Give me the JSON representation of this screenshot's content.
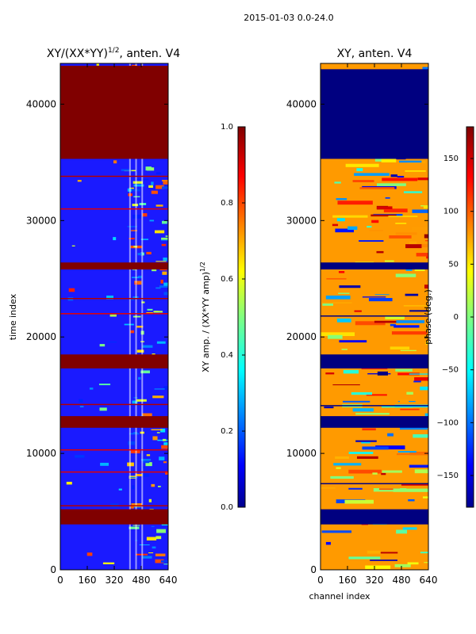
{
  "figure": {
    "suptitle": "2015-01-03 0.0-24.0",
    "colors": {
      "background": "#ffffff",
      "axis": "#000000",
      "dark_red": "#800000",
      "dark_blue": "#00008f"
    }
  },
  "chart_data": [
    {
      "type": "heatmap",
      "title": "XY/(XX*YY)^1/2, anten. V4",
      "title_main": "XY/(XX*YY)",
      "title_exp": "1/2",
      "title_suffix": ", anten. V4",
      "xlabel": "",
      "ylabel": "time index",
      "xlim": [
        0,
        640
      ],
      "ylim": [
        0,
        43500
      ],
      "xticks": [
        "0",
        "160",
        "320",
        "480",
        "640"
      ],
      "yticks": [
        "0",
        "10000",
        "20000",
        "30000",
        "40000"
      ],
      "colormap": "jet",
      "solid_bands": [
        {
          "y0": 35300,
          "y1": 43300,
          "value": 1.0
        },
        {
          "y0": 25800,
          "y1": 26400,
          "value": 1.0
        },
        {
          "y0": 17300,
          "y1": 18500,
          "value": 1.0
        },
        {
          "y0": 12200,
          "y1": 13200,
          "value": 1.0
        },
        {
          "y0": 3900,
          "y1": 5200,
          "value": 1.0
        }
      ],
      "thin_lines": [
        {
          "y": 33800,
          "value": 0.95
        },
        {
          "y": 31000,
          "value": 0.9
        },
        {
          "y": 23300,
          "value": 0.95
        },
        {
          "y": 22000,
          "value": 0.9
        },
        {
          "y": 14200,
          "value": 0.95
        },
        {
          "y": 10300,
          "value": 0.9
        },
        {
          "y": 8400,
          "value": 0.9
        },
        {
          "y": 5500,
          "value": 0.95
        }
      ],
      "colorbar": {
        "label": "XY amp. / (XX*YY amp)^1/2",
        "label_main": "XY amp. / (XX*YY amp)",
        "label_exp": "1/2",
        "min": 0.0,
        "max": 1.0,
        "ticks": [
          "0.0",
          "0.2",
          "0.4",
          "0.6",
          "0.8",
          "1.0"
        ]
      }
    },
    {
      "type": "heatmap",
      "title": "XY, anten. V4",
      "xlabel": "channel index",
      "ylabel": "",
      "xlim": [
        0,
        640
      ],
      "ylim": [
        0,
        43500
      ],
      "xticks": [
        "0",
        "160",
        "320",
        "480",
        "640"
      ],
      "yticks": [
        "0",
        "10000",
        "20000",
        "30000",
        "40000"
      ],
      "colormap": "jet",
      "solid_bands": [
        {
          "y0": 35300,
          "y1": 43000,
          "value": -180
        },
        {
          "y0": 25800,
          "y1": 26400,
          "value": -180
        },
        {
          "y0": 17300,
          "y1": 18500,
          "value": -180
        },
        {
          "y0": 12200,
          "y1": 13200,
          "value": -180
        },
        {
          "y0": 3900,
          "y1": 5200,
          "value": -180
        }
      ],
      "thin_lines": [
        {
          "y": 21800,
          "value": -180
        },
        {
          "y": 14100,
          "value": -180
        },
        {
          "y": 7400,
          "value": -180
        }
      ],
      "colorbar": {
        "label": "phase (deg.)",
        "min": -180,
        "max": 180,
        "ticks": [
          "150",
          "100",
          "50",
          "0",
          "−50",
          "−100",
          "−150"
        ],
        "tick_values": [
          150,
          100,
          50,
          0,
          -50,
          -100,
          -150
        ]
      }
    }
  ]
}
